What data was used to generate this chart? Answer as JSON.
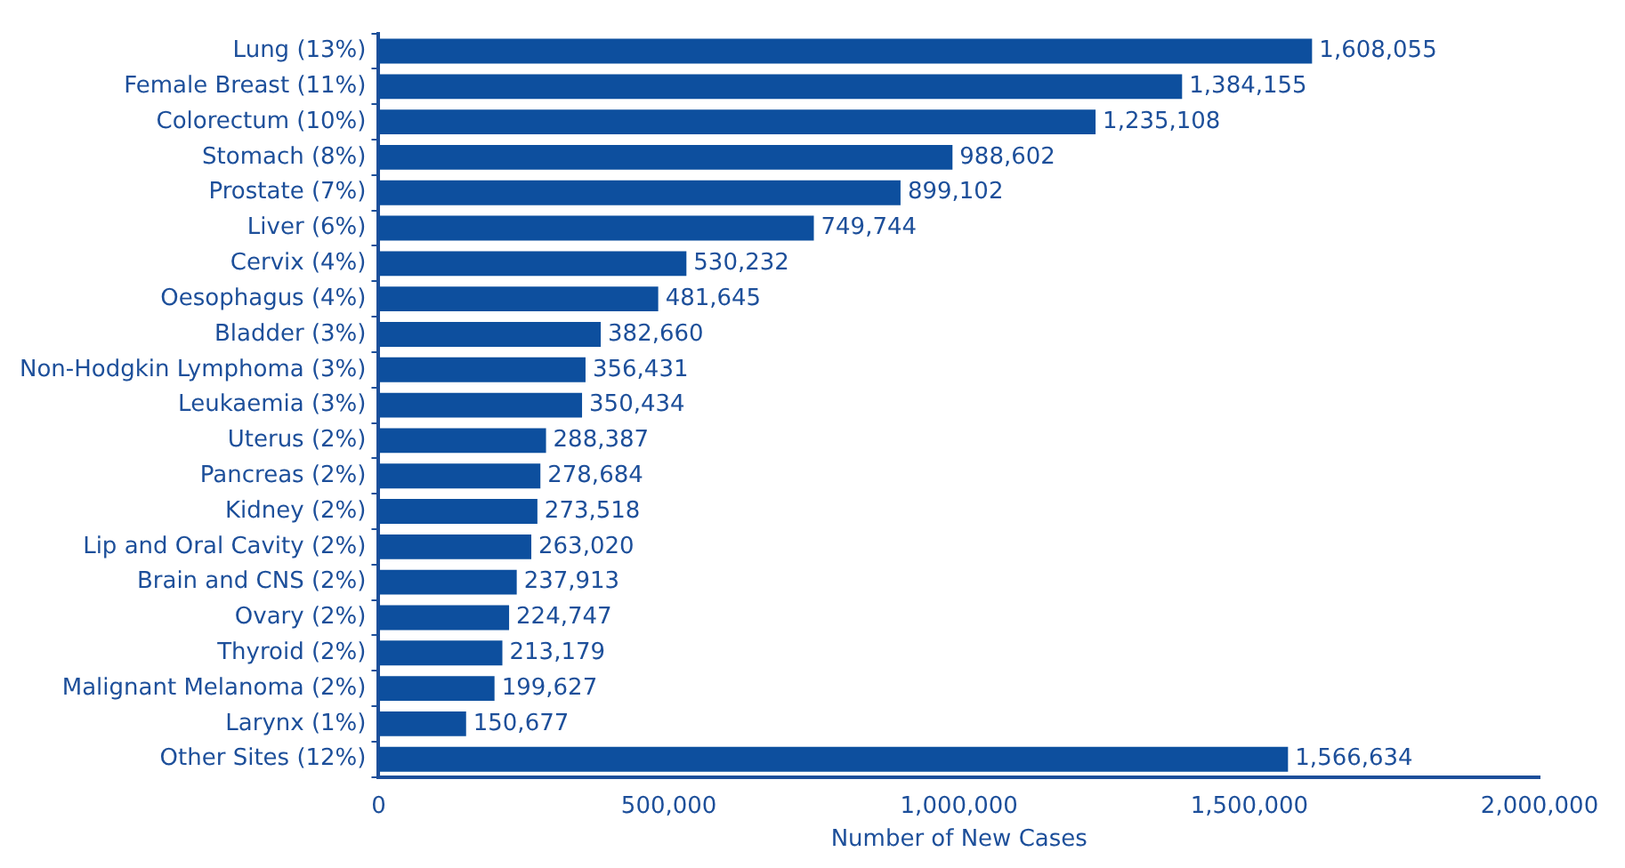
{
  "chart_data": {
    "type": "bar",
    "orientation": "horizontal",
    "xlabel": "Number of New Cases",
    "categories": [
      "Lung (13%)",
      "Female Breast (11%)",
      "Colorectum (10%)",
      "Stomach (8%)",
      "Prostate (7%)",
      "Liver (6%)",
      "Cervix (4%)",
      "Oesophagus (4%)",
      "Bladder (3%)",
      "Non-Hodgkin Lymphoma (3%)",
      "Leukaemia (3%)",
      "Uterus (2%)",
      "Pancreas (2%)",
      "Kidney (2%)",
      "Lip and Oral Cavity (2%)",
      "Brain and CNS (2%)",
      "Ovary (2%)",
      "Thyroid (2%)",
      "Malignant Melanoma (2%)",
      "Larynx (1%)",
      "Other Sites (12%)"
    ],
    "values": [
      1608055,
      1384155,
      1235108,
      988602,
      899102,
      749744,
      530232,
      481645,
      382660,
      356431,
      350434,
      288387,
      278684,
      273518,
      263020,
      237913,
      224747,
      213179,
      199627,
      150677,
      1566634
    ],
    "color": "#0d4f9e",
    "xlim": [
      0,
      2000000
    ],
    "xticks": [
      {
        "value": 0,
        "label": "0"
      },
      {
        "value": 500000,
        "label": "500,000"
      },
      {
        "value": 1000000,
        "label": "1,000,000"
      },
      {
        "value": 1500000,
        "label": "1,500,000"
      },
      {
        "value": 2000000,
        "label": "2,000,000"
      }
    ],
    "value_labels": [
      "1,608,055",
      "1,384,155",
      "1,235,108",
      "988,602",
      "899,102",
      "749,744",
      "530,232",
      "481,645",
      "382,660",
      "356,431",
      "350,434",
      "288,387",
      "278,684",
      "273,518",
      "263,020",
      "237,913",
      "224,747",
      "213,179",
      "199,627",
      "150,677",
      "1,566,634"
    ],
    "grid": false,
    "legend": false
  }
}
